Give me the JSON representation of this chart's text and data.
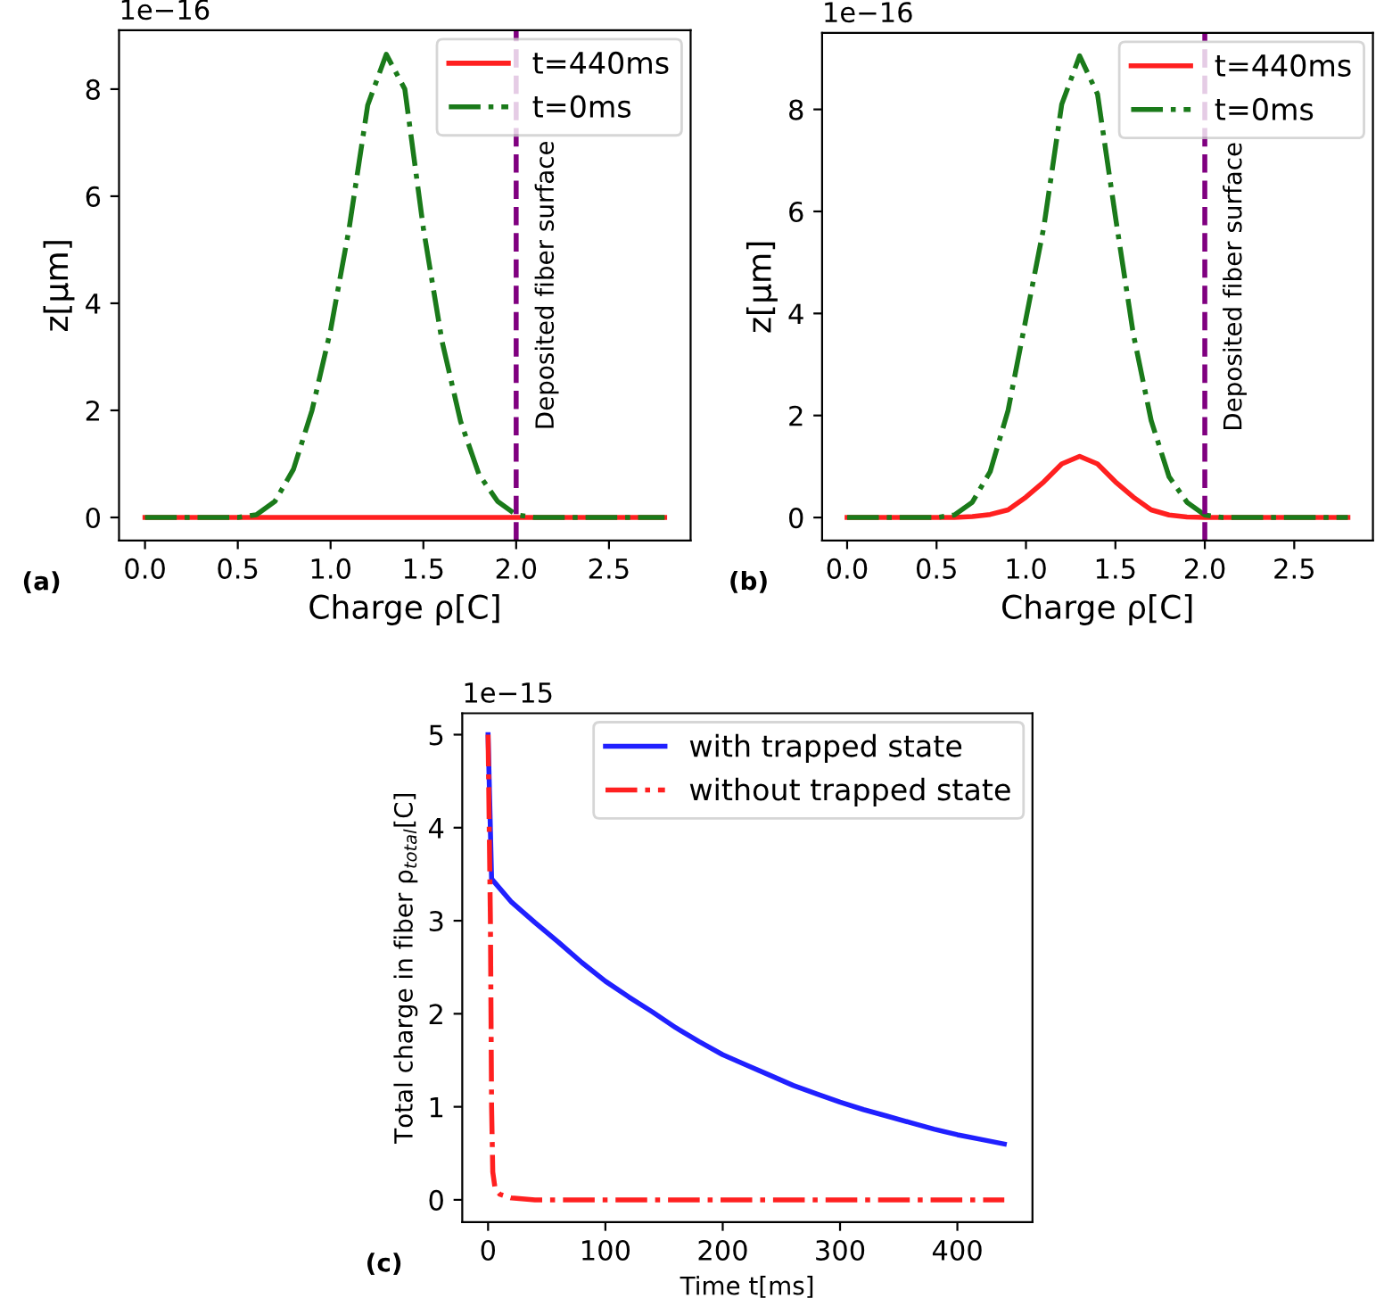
{
  "chart_data": [
    {
      "type": "line",
      "xlabel": "Charge ρ[C]",
      "ylabel": "z[μm]",
      "xlim": [
        -0.14,
        2.94
      ],
      "ylim": [
        -0.43,
        9.1
      ],
      "xticks": [
        {
          "value": 0,
          "label": "0.0"
        },
        {
          "value": 0.5,
          "label": "0.5"
        },
        {
          "value": 1,
          "label": "1.0"
        },
        {
          "value": 1.5,
          "label": "1.5"
        },
        {
          "value": 2,
          "label": "2.0"
        },
        {
          "value": 2.5,
          "label": "2.5"
        }
      ],
      "yticks": [
        0,
        2,
        4,
        6,
        8
      ],
      "legend": "top right",
      "grid": false,
      "x": [
        0,
        0.1,
        0.2,
        0.3,
        0.4,
        0.5,
        0.6,
        0.7,
        0.8,
        0.9,
        1.0,
        1.1,
        1.2,
        1.3,
        1.4,
        1.5,
        1.6,
        1.7,
        1.8,
        1.9,
        2.0,
        2.1,
        2.2,
        2.3,
        2.4,
        2.5,
        2.6,
        2.7,
        2.8
      ],
      "series": [
        {
          "name": "t=440ms",
          "color": "#ff2020",
          "line_style": "solid",
          "values": [
            0,
            0,
            0,
            0,
            0,
            0,
            0,
            0,
            0,
            0,
            0,
            0,
            0,
            0,
            0,
            0,
            0,
            0,
            0,
            0,
            0,
            0,
            0,
            0,
            0,
            0,
            0,
            0,
            0
          ]
        },
        {
          "name": "t=0ms",
          "color": "#1a7a1a",
          "line_style": "dashdot",
          "values": [
            0,
            0,
            0,
            0,
            0,
            0,
            0.05,
            0.3,
            0.9,
            2.0,
            3.5,
            5.4,
            7.7,
            8.65,
            8.0,
            5.4,
            3.3,
            1.8,
            0.8,
            0.3,
            0.05,
            0,
            0,
            0,
            0,
            0,
            0,
            0,
            0
          ]
        }
      ],
      "ref_lines": [
        {
          "axis": "x",
          "value": 2.0,
          "label": "Deposited fiber surface",
          "color": "#800080",
          "line_style": "dashed"
        }
      ],
      "annotations": [
        "1e−16",
        "(a)"
      ]
    },
    {
      "type": "line",
      "xlabel": "Charge ρ[C]",
      "ylabel": "z[μm]",
      "xlim": [
        -0.14,
        2.94
      ],
      "ylim": [
        -0.45,
        9.5
      ],
      "xticks": [
        {
          "value": 0,
          "label": "0.0"
        },
        {
          "value": 0.5,
          "label": "0.5"
        },
        {
          "value": 1,
          "label": "1.0"
        },
        {
          "value": 1.5,
          "label": "1.5"
        },
        {
          "value": 2,
          "label": "2.0"
        },
        {
          "value": 2.5,
          "label": "2.5"
        }
      ],
      "yticks": [
        0,
        2,
        4,
        6,
        8
      ],
      "legend": "top right",
      "grid": false,
      "x": [
        0,
        0.1,
        0.2,
        0.3,
        0.4,
        0.5,
        0.6,
        0.7,
        0.8,
        0.9,
        1.0,
        1.1,
        1.2,
        1.3,
        1.4,
        1.5,
        1.6,
        1.7,
        1.8,
        1.9,
        2.0,
        2.1,
        2.2,
        2.3,
        2.4,
        2.5,
        2.6,
        2.7,
        2.8
      ],
      "series": [
        {
          "name": "t=440ms",
          "color": "#ff2020",
          "line_style": "solid",
          "values": [
            0,
            0,
            0,
            0,
            0,
            0,
            0,
            0.02,
            0.06,
            0.15,
            0.4,
            0.7,
            1.05,
            1.2,
            1.05,
            0.7,
            0.4,
            0.15,
            0.05,
            0.01,
            0,
            0,
            0,
            0,
            0,
            0,
            0,
            0,
            0
          ]
        },
        {
          "name": "t=0ms",
          "color": "#1a7a1a",
          "line_style": "dashdot",
          "values": [
            0,
            0,
            0,
            0,
            0,
            0,
            0.05,
            0.3,
            0.9,
            2.1,
            3.9,
            5.7,
            8.1,
            9.05,
            8.3,
            5.9,
            3.6,
            1.9,
            0.8,
            0.3,
            0.05,
            0,
            0,
            0,
            0,
            0,
            0,
            0,
            0
          ]
        }
      ],
      "ref_lines": [
        {
          "axis": "x",
          "value": 2.0,
          "label": "Deposited fiber surface",
          "color": "#800080",
          "line_style": "dashed"
        }
      ],
      "annotations": [
        "1e−16",
        "(b)"
      ]
    },
    {
      "type": "line",
      "xlabel": "Time t[ms]",
      "ylabel": "Total charge in fiber ρ$_{total}$[C]",
      "xlim": [
        -22,
        464
      ],
      "ylim": [
        -0.24,
        5.23
      ],
      "xticks": [
        0,
        100,
        200,
        300,
        400
      ],
      "yticks": [
        0,
        1,
        2,
        3,
        4,
        5
      ],
      "legend": "top right",
      "grid": false,
      "series": [
        {
          "name": "with trapped state",
          "color": "#2020ff",
          "line_style": "solid",
          "x": [
            0,
            3,
            20,
            40,
            60,
            80,
            100,
            120,
            140,
            160,
            180,
            200,
            220,
            240,
            260,
            280,
            300,
            320,
            340,
            360,
            380,
            400,
            420,
            440
          ],
          "values": [
            5.0,
            3.45,
            3.2,
            2.98,
            2.77,
            2.55,
            2.35,
            2.18,
            2.02,
            1.85,
            1.7,
            1.56,
            1.45,
            1.34,
            1.23,
            1.14,
            1.05,
            0.97,
            0.9,
            0.83,
            0.76,
            0.7,
            0.65,
            0.6
          ]
        },
        {
          "name": "without trapped state",
          "color": "#ff2020",
          "line_style": "dashdot",
          "x": [
            0,
            2,
            3,
            4,
            6,
            10,
            20,
            40,
            440
          ],
          "values": [
            5.0,
            3.0,
            1.0,
            0.3,
            0.12,
            0.06,
            0.02,
            0,
            0
          ]
        }
      ],
      "annotations": [
        "1e−15",
        "(c)"
      ]
    }
  ]
}
